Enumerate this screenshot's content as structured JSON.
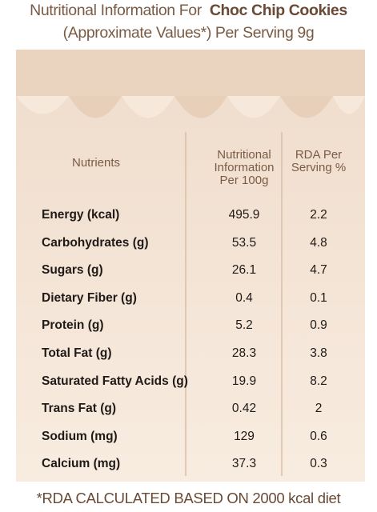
{
  "header": {
    "title_prefix": "Nutritional Information For",
    "title_product": "Choc Chip Cookies",
    "subtitle": "(Approximate Values*) Per Serving 9g"
  },
  "table": {
    "columns": [
      [
        "Nutrients"
      ],
      [
        "Nutritional",
        "Information",
        "Per 100g"
      ],
      [
        "RDA Per",
        "Serving %"
      ]
    ],
    "rows": [
      [
        "Energy (kcal)",
        "495.9",
        "2.2"
      ],
      [
        "Carbohydrates (g)",
        "53.5",
        "4.8"
      ],
      [
        "Sugars (g)",
        "26.1",
        "4.7"
      ],
      [
        "Dietary Fiber (g)",
        "0.4",
        "0.1"
      ],
      [
        "Protein (g)",
        "5.2",
        "0.9"
      ],
      [
        "Total Fat (g)",
        "28.3",
        "3.8"
      ],
      [
        "Saturated Fatty Acids (g)",
        "19.9",
        "8.2"
      ],
      [
        "Trans Fat (g)",
        "0.42",
        "2"
      ],
      [
        "Sodium (mg)",
        "129",
        "0.6"
      ],
      [
        "Calcium (mg)",
        "37.3",
        "0.3"
      ]
    ]
  },
  "footnote": "*RDA CALCULATED BASED ON 2000 kcal diet"
}
